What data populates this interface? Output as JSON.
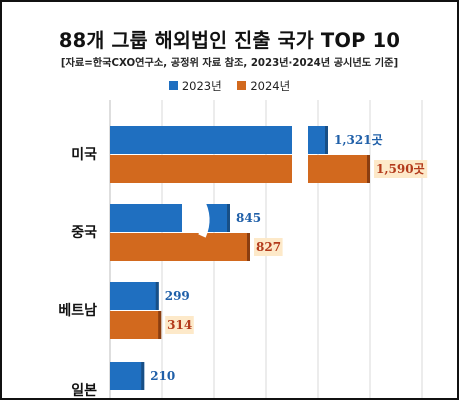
{
  "title": "88개 그룹 해외법인 진출 국가 TOP 10",
  "subtitle": "[자료=한국CXO연구소, 공정위 자료 참조, 2023년·2024년 공시년도 기준]",
  "chart_data": {
    "type": "bar",
    "orientation": "horizontal",
    "title": "88개 그룹 해외법인 진출 국가 TOP 10",
    "subtitle": "[자료=한국CXO연구소, 공정위 자료 참조, 2023년·2024년 공시년도 기준]",
    "categories": [
      "미국",
      "중국",
      "베트남",
      "일본"
    ],
    "series": [
      {
        "name": "2023년",
        "color": "#1f6fc0",
        "values": [
          1321,
          845,
          299,
          210
        ],
        "labels": [
          "1,321곳",
          "845",
          "299",
          "210"
        ]
      },
      {
        "name": "2024년",
        "color": "#d2691e",
        "values": [
          1590,
          827,
          314,
          0
        ],
        "labels": [
          "1,590곳",
          "827",
          "314",
          ""
        ]
      }
    ],
    "axis_break": true,
    "grid": true,
    "legend": "top-center"
  }
}
